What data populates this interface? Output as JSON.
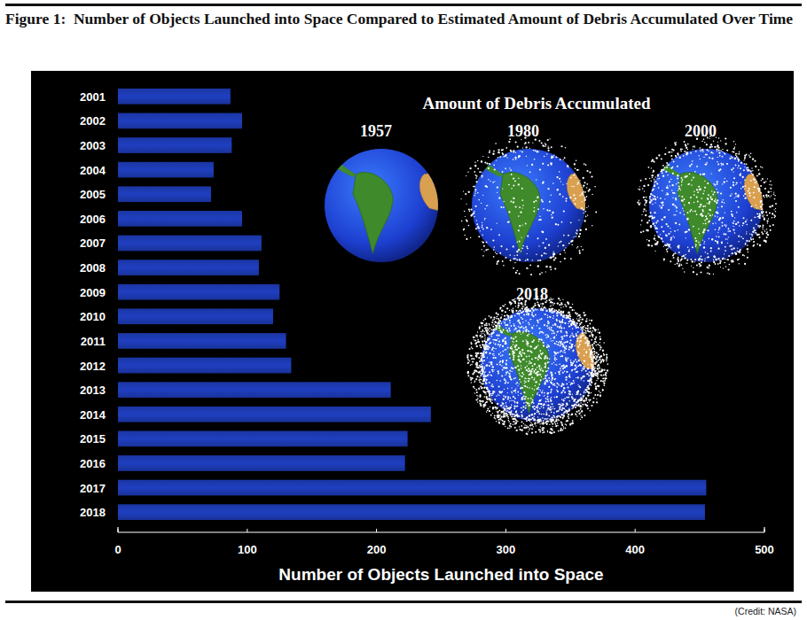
{
  "chart_data": {
    "type": "bar",
    "title": "Figure 1:  Number of Objects Launched into Space Compared to Estimated Amount of Debris Accumulated Over Time",
    "x_label": "Number of Objects Launched into Space",
    "orientation": "horizontal",
    "categories": [
      "2001",
      "2002",
      "2003",
      "2004",
      "2005",
      "2006",
      "2007",
      "2008",
      "2009",
      "2010",
      "2011",
      "2012",
      "2013",
      "2014",
      "2015",
      "2016",
      "2017",
      "2018"
    ],
    "values": [
      87,
      96,
      88,
      74,
      72,
      96,
      111,
      109,
      125,
      120,
      130,
      134,
      211,
      242,
      224,
      222,
      455,
      454
    ],
    "color": "#1f3fc0",
    "xlim": [
      0,
      500
    ],
    "xticks": [
      0,
      100,
      200,
      300,
      400,
      500
    ],
    "grid": false,
    "annotations": {
      "debris_title": "Amount of Debris Accumulated",
      "globe_years": [
        "1957",
        "1980",
        "2000",
        "2018"
      ]
    },
    "credit": "(Credit: NASA)"
  }
}
